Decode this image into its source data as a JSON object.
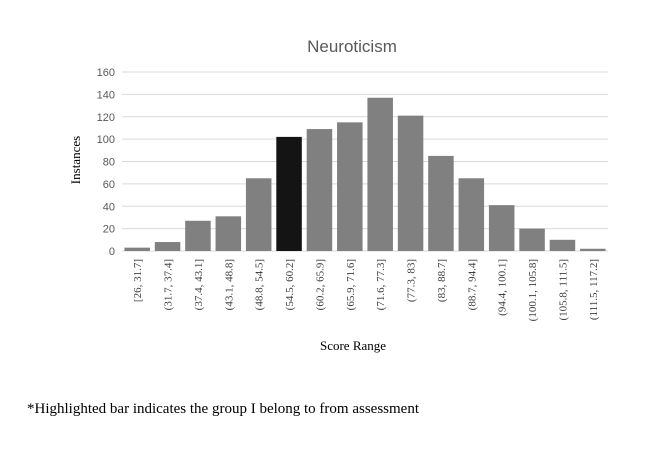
{
  "chart_data": {
    "type": "bar",
    "title": "Neuroticism",
    "xlabel": "Score Range",
    "ylabel": "Instances",
    "ylim": [
      0,
      160
    ],
    "yticks": [
      0,
      20,
      40,
      60,
      80,
      100,
      120,
      140,
      160
    ],
    "grid": true,
    "categories": [
      "[26, 31.7]",
      "(31.7, 37.4]",
      "(37.4, 43.1]",
      "(43.1, 48.8]",
      "(48.8, 54.5]",
      "(54.5, 60.2]",
      "(60.2, 65.9]",
      "(65.9, 71.6]",
      "(71.6, 77.3]",
      "(77.3, 83]",
      "(83, 88.7]",
      "(88.7, 94.4]",
      "(94.4, 100.1]",
      "(100.1, 105.8]",
      "(105.8, 111.5]",
      "(111.5, 117.2]"
    ],
    "values": [
      3,
      8,
      27,
      31,
      65,
      102,
      109,
      115,
      137,
      121,
      85,
      65,
      41,
      20,
      10,
      2
    ],
    "highlighted_category": "(54.5, 60.2]",
    "colors": {
      "bar_fill": "#808080",
      "bar_highlight": "#141414",
      "grid": "#d9d9d9"
    }
  },
  "footnote": "*Highlighted bar indicates the group I belong to from assessment"
}
